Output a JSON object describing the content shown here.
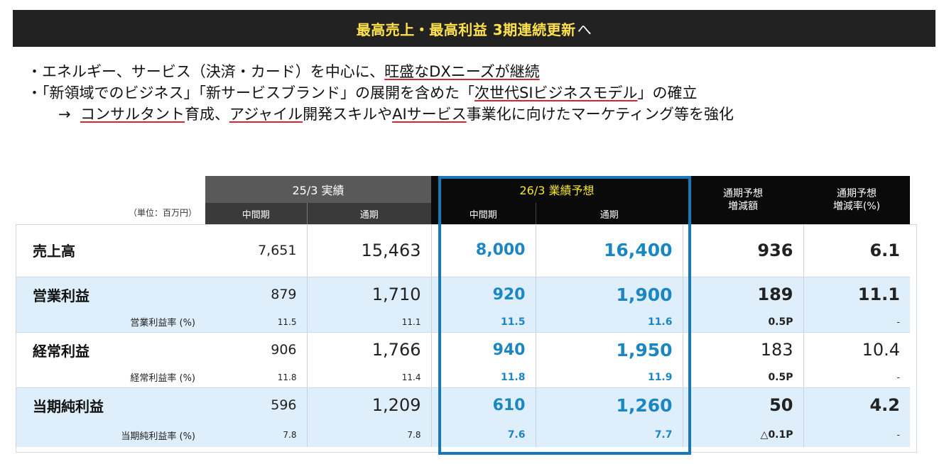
{
  "title": {
    "main": "最高売上・最高利益 3期連続更新",
    "suffix": "へ"
  },
  "bullets": [
    {
      "prefix": "・エネルギー、サービス（決済・カード）を中心に、",
      "underlined": "旺盛なDXニーズが継続",
      "suffix": ""
    },
    {
      "prefix": "・「新領域でのビジネス」「新サービスブランド」の展開を含めた「",
      "underlined": "次世代SIビジネスモデル",
      "suffix": "」の確立"
    },
    {
      "arrow": "→",
      "part1_u": "コンサルタント",
      "part2": "育成、",
      "part3_u": "アジャイル",
      "part4": "開発スキルや",
      "part5_u": "AIサービス",
      "part6": "事業化に向けたマーケティング等を強化"
    }
  ],
  "table": {
    "unit": "（単位：百万円）",
    "group_actual": "25/3 実績",
    "group_forecast": "26/3 業績予想",
    "col_interim": "中間期",
    "col_full": "通期",
    "col_diff_amount_l1": "通期予想",
    "col_diff_amount_l2": "増減額",
    "col_diff_rate_l1": "通期予想",
    "col_diff_rate_l2": "増減率(%)",
    "rows": [
      {
        "label": "売上高",
        "a_interim": "7,651",
        "a_full": "15,463",
        "f_interim": "8,000",
        "f_full": "16,400",
        "diff": "936",
        "rate": "6.1"
      },
      {
        "label": "営業利益",
        "a_interim": "879",
        "a_full": "1,710",
        "f_interim": "920",
        "f_full": "1,900",
        "diff": "189",
        "rate": "11.1",
        "sub": {
          "label": "営業利益率 (%)",
          "a_interim": "11.5",
          "a_full": "11.1",
          "f_interim": "11.5",
          "f_full": "11.6",
          "diff": "0.5P",
          "rate": "-"
        }
      },
      {
        "label": "経常利益",
        "a_interim": "906",
        "a_full": "1,766",
        "f_interim": "940",
        "f_full": "1,950",
        "diff": "183",
        "rate": "10.4",
        "sub": {
          "label": "経常利益率 (%)",
          "a_interim": "11.8",
          "a_full": "11.4",
          "f_interim": "11.8",
          "f_full": "11.9",
          "diff": "0.5P",
          "rate": "-"
        }
      },
      {
        "label": "当期純利益",
        "a_interim": "596",
        "a_full": "1,209",
        "f_interim": "610",
        "f_full": "1,260",
        "diff": "50",
        "rate": "4.2",
        "sub": {
          "label": "当期純利益率 (%)",
          "a_interim": "7.8",
          "a_full": "7.8",
          "f_interim": "7.6",
          "f_full": "7.7",
          "diff": "△0.1P",
          "rate": "-"
        }
      }
    ]
  },
  "colors": {
    "title_bg": "#222222",
    "title_text": "#ffe14d",
    "forecast_blue": "#1a86c4",
    "highlight_border": "#1678b8",
    "row_blue": "#deeefa",
    "underline_red": "#d9262e"
  }
}
